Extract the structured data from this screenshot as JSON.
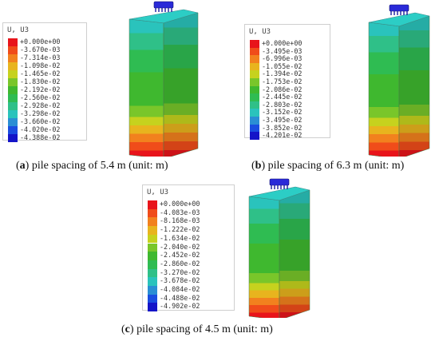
{
  "colors": {
    "scale": [
      "#e8141b",
      "#f04c1a",
      "#f2811e",
      "#e8b41e",
      "#c6d21e",
      "#79c62a",
      "#3fb82f",
      "#2fbc52",
      "#2fc088",
      "#2ac3bc",
      "#2a8ed4",
      "#1a4de0",
      "#1414c8"
    ],
    "cap": "#2a2ad8"
  },
  "panels": [
    {
      "id": "a",
      "caption_letter": "a",
      "caption_text": "pile spacing of 5.4 m (unit: m)",
      "legend_title": "U, U3",
      "legend_values": [
        "+0.000e+00",
        "-3.670e-03",
        "-7.314e-03",
        "-1.098e-02",
        "-1.465e-02",
        "-1.830e-02",
        "-2.192e-02",
        "-2.560e-02",
        "-2.928e-02",
        "-3.298e-02",
        "-3.660e-02",
        "-4.020e-02",
        "-4.388e-02"
      ]
    },
    {
      "id": "b",
      "caption_letter": "b",
      "caption_text": "pile spacing of 6.3 m (unit: m)",
      "legend_title": "U, U3",
      "legend_values": [
        "+0.000e+00",
        "-3.495e-03",
        "-6.996e-03",
        "-1.055e-02",
        "-1.394e-02",
        "-1.753e-02",
        "-2.086e-02",
        "-2.445e-02",
        "-2.803e-02",
        "-3.152e-02",
        "-3.495e-02",
        "-3.852e-02",
        "-4.201e-02"
      ]
    },
    {
      "id": "c",
      "caption_letter": "c",
      "caption_text": "pile spacing of 4.5 m (unit: m)",
      "legend_title": "U, U3",
      "legend_values": [
        "+0.000e+00",
        "-4.083e-03",
        "-8.168e-03",
        "-1.222e-02",
        "-1.634e-02",
        "-2.040e-02",
        "-2.452e-02",
        "-2.860e-02",
        "-3.270e-02",
        "-3.678e-02",
        "-4.084e-02",
        "-4.488e-02",
        "-4.902e-02"
      ]
    }
  ]
}
